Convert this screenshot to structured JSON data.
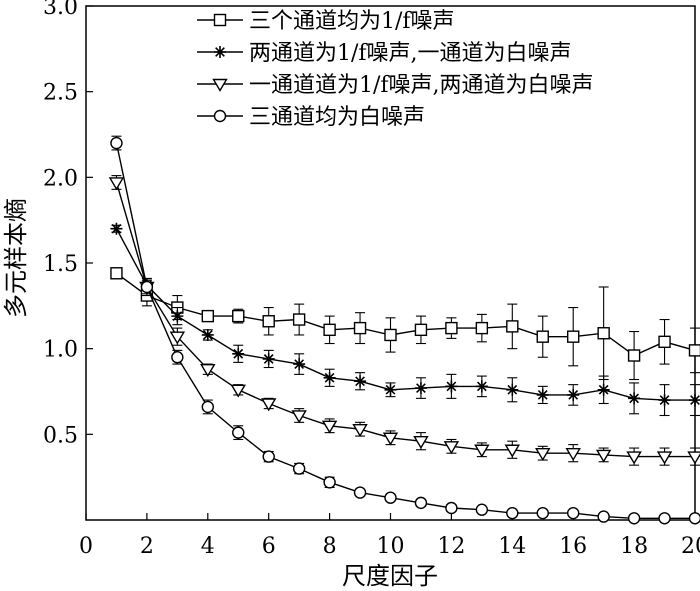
{
  "chart_data": {
    "type": "line",
    "xlabel": "尺度因子",
    "ylabel": "多元样本熵",
    "xlim": [
      0,
      20
    ],
    "ylim": [
      0,
      3.0
    ],
    "xticks": [
      "0",
      "2",
      "4",
      "6",
      "8",
      "10",
      "12",
      "14",
      "16",
      "18",
      "20"
    ],
    "yticks": [
      "0.5",
      "1.0",
      "1.5",
      "2.0",
      "2.5",
      "3.0"
    ],
    "legend_position": "top-right",
    "x": [
      1,
      2,
      3,
      4,
      5,
      6,
      7,
      8,
      9,
      10,
      11,
      12,
      13,
      14,
      15,
      16,
      17,
      18,
      19,
      20
    ],
    "series": [
      {
        "name": "三个通道均为1/f噪声",
        "marker": "square",
        "values": [
          1.44,
          1.31,
          1.24,
          1.19,
          1.19,
          1.16,
          1.17,
          1.11,
          1.12,
          1.08,
          1.11,
          1.12,
          1.12,
          1.13,
          1.07,
          1.07,
          1.09,
          0.96,
          1.04,
          0.99
        ],
        "errors": [
          0.02,
          0.06,
          0.07,
          0.03,
          0.04,
          0.08,
          0.09,
          0.08,
          0.09,
          0.1,
          0.08,
          0.06,
          0.08,
          0.13,
          0.12,
          0.17,
          0.27,
          0.14,
          0.13,
          0.13
        ]
      },
      {
        "name": "两通道为1/f噪声,一通道为白噪声",
        "marker": "asterisk",
        "values": [
          1.7,
          1.37,
          1.19,
          1.08,
          0.97,
          0.94,
          0.91,
          0.83,
          0.81,
          0.76,
          0.77,
          0.78,
          0.78,
          0.76,
          0.73,
          0.73,
          0.76,
          0.71,
          0.7,
          0.7
        ],
        "errors": [
          0.02,
          0.03,
          0.05,
          0.03,
          0.05,
          0.05,
          0.06,
          0.05,
          0.05,
          0.04,
          0.06,
          0.07,
          0.06,
          0.07,
          0.05,
          0.06,
          0.08,
          0.09,
          0.09,
          0.09
        ]
      },
      {
        "name": "一通道道为1/f噪声,两通道为白噪声",
        "marker": "triangle-down",
        "values": [
          1.97,
          1.36,
          1.07,
          0.88,
          0.76,
          0.68,
          0.61,
          0.55,
          0.53,
          0.48,
          0.46,
          0.43,
          0.41,
          0.41,
          0.39,
          0.39,
          0.38,
          0.37,
          0.37,
          0.37
        ],
        "errors": [
          0.04,
          0.05,
          0.05,
          0.03,
          0.03,
          0.03,
          0.04,
          0.04,
          0.04,
          0.04,
          0.05,
          0.04,
          0.04,
          0.05,
          0.04,
          0.05,
          0.04,
          0.05,
          0.05,
          0.05
        ]
      },
      {
        "name": "三通道均为白噪声",
        "marker": "circle",
        "values": [
          2.2,
          1.36,
          0.95,
          0.66,
          0.51,
          0.37,
          0.3,
          0.22,
          0.16,
          0.13,
          0.1,
          0.07,
          0.06,
          0.04,
          0.04,
          0.04,
          0.02,
          0.01,
          0.01,
          0.01
        ],
        "errors": [
          0.04,
          0.04,
          0.04,
          0.04,
          0.04,
          0.03,
          0.03,
          0.03,
          0.02,
          0.02,
          0.02,
          0.02,
          0.01,
          0.01,
          0.01,
          0.01,
          0.01,
          0.01,
          0.01,
          0.01
        ]
      }
    ]
  }
}
